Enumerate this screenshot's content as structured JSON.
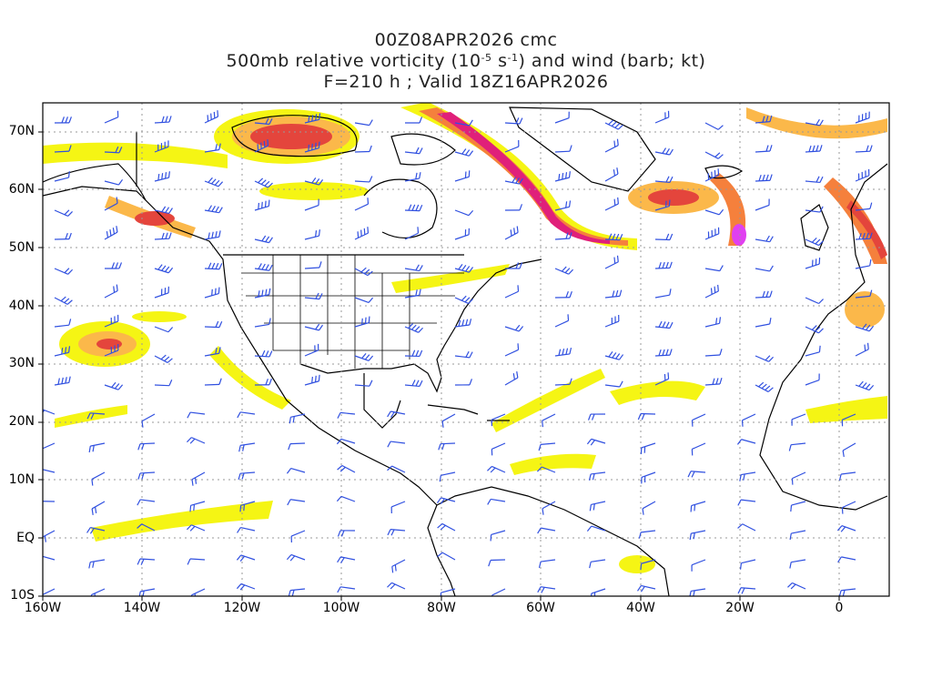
{
  "title": {
    "line1": "00Z08APR2026 cmc",
    "line2_pre": "500mb relative vorticity (10",
    "line2_exp1": "-5",
    "line2_mid": " s",
    "line2_exp2": "-1",
    "line2_post": ") and wind (barb; kt)",
    "line3": "F=210 h ; Valid 18Z16APR2026"
  },
  "axes": {
    "x_ticks": [
      "160W",
      "140W",
      "120W",
      "100W",
      "80W",
      "60W",
      "40W",
      "20W",
      "0"
    ],
    "y_ticks": [
      "70N",
      "60N",
      "50N",
      "40N",
      "30N",
      "20N",
      "10N",
      "EQ",
      "10S"
    ],
    "lon_range": [
      -160,
      10
    ],
    "lat_range": [
      -10,
      75
    ]
  },
  "colors": {
    "vort_1": "#f5f514",
    "vort_2": "#fce45a",
    "vort_3": "#fbb84a",
    "vort_4": "#f5803c",
    "vort_5": "#e4453c",
    "vort_6": "#e0207a",
    "vort_7": "#e040f0",
    "barb": "#3050e0",
    "coast": "#000000",
    "grid": "#999999"
  }
}
